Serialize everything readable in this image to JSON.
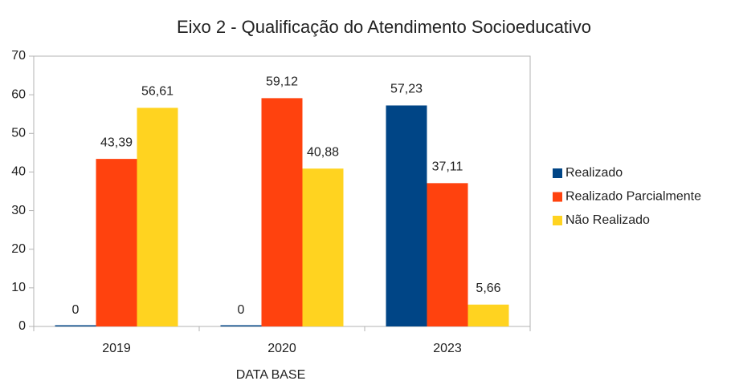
{
  "chart_data": {
    "type": "bar",
    "title": "Eixo 2 - Qualificação do Atendimento Socioeducativo",
    "x_label": "DATA BASE",
    "categories": [
      "2019",
      "2020",
      "2023"
    ],
    "series": [
      {
        "name": "Realizado",
        "color": "#004586",
        "values": [
          0,
          0,
          57.23
        ],
        "value_labels": [
          "0",
          "0",
          "57,23"
        ]
      },
      {
        "name": "Realizado Parcialmente",
        "color": "#ff420e",
        "values": [
          43.39,
          59.12,
          37.11
        ],
        "value_labels": [
          "43,39",
          "59,12",
          "37,11"
        ]
      },
      {
        "name": "Não Realizado",
        "color": "#ffd320",
        "values": [
          56.61,
          40.88,
          5.66
        ],
        "value_labels": [
          "56,61",
          "40,88",
          "5,66"
        ]
      }
    ],
    "ylim": [
      0,
      70
    ],
    "yticks": [
      0,
      10,
      20,
      30,
      40,
      50,
      60,
      70
    ],
    "grid": false,
    "legend": "right"
  }
}
